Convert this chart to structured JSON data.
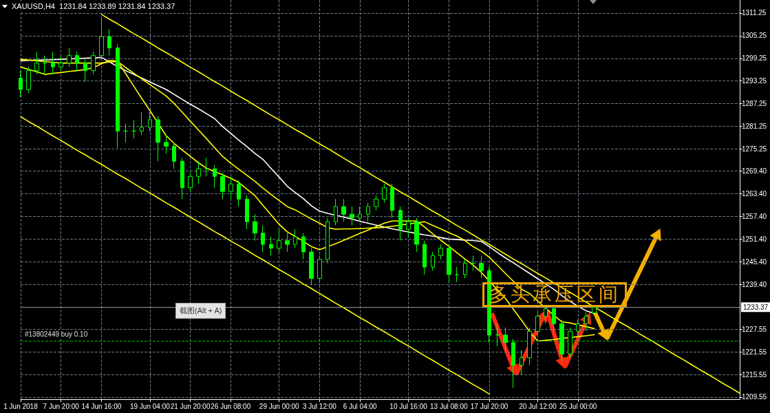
{
  "chart_data": {
    "type": "candlestick",
    "title": "XAUUSD,H4  1231.84 1233.89 1231.84 1233.37",
    "categories": [
      "1 Jun 2018",
      null,
      null,
      null,
      null,
      "7 Jun 20:00",
      null,
      null,
      null,
      null,
      "14 Jun 16:00",
      null,
      null,
      null,
      null,
      null,
      "19 Jun 04:00",
      null,
      null,
      null,
      null,
      "21 Jun 20:00",
      null,
      null,
      null,
      null,
      "26 Jun 08:00",
      null,
      null,
      null,
      null,
      null,
      "29 Jun 00:00",
      null,
      null,
      null,
      null,
      "3 Jul 12:00",
      null,
      null,
      null,
      null,
      "6 Jul 04:00",
      null,
      null,
      null,
      null,
      null,
      "10 Jul 16:00",
      null,
      null,
      null,
      null,
      "13 Jul 08:00",
      null,
      null,
      null,
      null,
      "17 Jul 20:00",
      null,
      null,
      null,
      null,
      null,
      "20 Jul 12:00",
      null,
      null,
      null,
      null,
      "25 Jul 00:00",
      null,
      null,
      null,
      null,
      null,
      null,
      null,
      null,
      null,
      null,
      null,
      null,
      null,
      null,
      null,
      null,
      null,
      null,
      null,
      null
    ],
    "ohlc": [
      [
        1294,
        1296,
        1289,
        1291
      ],
      [
        1291,
        1297,
        1290,
        1296
      ],
      [
        1296,
        1301,
        1295,
        1298
      ],
      [
        1298,
        1300,
        1295,
        1298
      ],
      [
        1298,
        1301,
        1295,
        1297
      ],
      [
        1297,
        1300,
        1296,
        1298
      ],
      [
        1298,
        1302,
        1297,
        1300
      ],
      [
        1300,
        1301,
        1296,
        1298
      ],
      [
        1298,
        1299,
        1293,
        1296
      ],
      [
        1296,
        1301,
        1295,
        1300
      ],
      [
        1300,
        1310,
        1299,
        1305
      ],
      [
        1305,
        1307,
        1300,
        1302
      ],
      [
        1302,
        1303,
        1275.5,
        1280
      ],
      [
        1280,
        1282,
        1277,
        1280
      ],
      [
        1280,
        1283,
        1278,
        1280
      ],
      [
        1280,
        1285,
        1279,
        1281
      ],
      [
        1281,
        1285,
        1280,
        1283
      ],
      [
        1283,
        1284,
        1272,
        1277
      ],
      [
        1277,
        1279,
        1274,
        1276
      ],
      [
        1276,
        1277,
        1270,
        1272
      ],
      [
        1272,
        1273,
        1262,
        1265
      ],
      [
        1265,
        1269,
        1264,
        1268
      ],
      [
        1268,
        1272,
        1266,
        1270
      ],
      [
        1270,
        1273,
        1268,
        1270
      ],
      [
        1270,
        1271,
        1265,
        1268
      ],
      [
        1268,
        1269,
        1262,
        1264
      ],
      [
        1264,
        1268,
        1262,
        1266
      ],
      [
        1266,
        1267,
        1260,
        1262
      ],
      [
        1262,
        1263,
        1254,
        1256
      ],
      [
        1256,
        1258,
        1251,
        1253
      ],
      [
        1253,
        1255,
        1248,
        1250
      ],
      [
        1250,
        1252,
        1247,
        1249
      ],
      [
        1249,
        1254,
        1248,
        1251
      ],
      [
        1251,
        1253,
        1248,
        1250
      ],
      [
        1250,
        1254,
        1249,
        1252
      ],
      [
        1252,
        1253,
        1246,
        1248
      ],
      [
        1248,
        1249,
        1239.3,
        1241
      ],
      [
        1241,
        1247,
        1240,
        1246
      ],
      [
        1246,
        1257,
        1245,
        1256
      ],
      [
        1256,
        1262,
        1255,
        1260
      ],
      [
        1260,
        1262,
        1256,
        1258
      ],
      [
        1258,
        1260,
        1255,
        1257
      ],
      [
        1257,
        1260,
        1256,
        1258
      ],
      [
        1258,
        1261,
        1256,
        1260
      ],
      [
        1260,
        1263,
        1259,
        1262
      ],
      [
        1262,
        1266,
        1261,
        1265
      ],
      [
        1265,
        1266,
        1257,
        1259
      ],
      [
        1259,
        1260,
        1251,
        1254
      ],
      [
        1254,
        1257,
        1252,
        1256
      ],
      [
        1256,
        1257,
        1248,
        1250
      ],
      [
        1250,
        1251,
        1242,
        1244
      ],
      [
        1244,
        1248,
        1243,
        1247
      ],
      [
        1247,
        1250,
        1246,
        1249
      ],
      [
        1249,
        1250,
        1240,
        1242
      ],
      [
        1242,
        1244,
        1240,
        1242
      ],
      [
        1242,
        1246,
        1241,
        1245
      ],
      [
        1245,
        1247,
        1243,
        1245
      ],
      [
        1245,
        1247,
        1241,
        1243
      ],
      [
        1243,
        1244,
        1224,
        1226
      ],
      [
        1226,
        1229,
        1223,
        1226
      ],
      [
        1226,
        1228,
        1222,
        1224
      ],
      [
        1224,
        1225,
        1212,
        1218
      ],
      [
        1218,
        1222,
        1215.5,
        1220
      ],
      [
        1220,
        1228,
        1218,
        1227
      ],
      [
        1227,
        1232,
        1226,
        1231
      ],
      [
        1231,
        1234,
        1229,
        1233
      ],
      [
        1233,
        1234,
        1227,
        1229
      ],
      [
        1229,
        1230,
        1219,
        1221
      ],
      [
        1221,
        1228,
        1220,
        1227
      ],
      [
        1227,
        1230,
        1225,
        1229
      ],
      [
        1229,
        1232,
        1227,
        1231
      ],
      [
        1231.84,
        1233.89,
        1231.84,
        1233.37
      ],
      null,
      null,
      null,
      null,
      null,
      null,
      null,
      null,
      null,
      null,
      null,
      null,
      null,
      null,
      null,
      null,
      null,
      null
    ],
    "color": "#00ff00",
    "series": [
      {
        "type": "line",
        "color": "#ffffff",
        "values": [
          1298.6,
          1298.7,
          1298.8,
          1298.8,
          1298.9,
          1299.0,
          1299.1,
          1299.2,
          1299.3,
          1299.4,
          1299.5,
          1298.3,
          1297.1,
          1296.0,
          1295.0,
          1294.0,
          1293.0,
          1292.0,
          1291.0,
          1289.7,
          1288.4,
          1287.1,
          1285.9,
          1284.6,
          1283.3,
          1281.2,
          1279.4,
          1277.6,
          1275.9,
          1274.1,
          1272.5,
          1270.1,
          1267.8,
          1265.4,
          1263.7,
          1262.1,
          1260.2,
          1258.8,
          1258.2,
          1257.7,
          1257.2,
          1256.7,
          1256.1,
          1255.6,
          1255.1,
          1254.6,
          1254.1,
          1253.7,
          1253.3,
          1252.9,
          1252.5,
          1252.2,
          1251.8,
          1251.4,
          1251.3,
          1251.1,
          1251.0,
          1250.8,
          1249.4,
          1247.9,
          1246.4,
          1245.1,
          1243.7,
          1242.3,
          1240.9,
          1239.5,
          1238.1,
          1236.4,
          1234.9,
          1233.6,
          1232.4,
          1231.7,
          null,
          null,
          null,
          null,
          null,
          null,
          null,
          null,
          null,
          null,
          null,
          null,
          null,
          null,
          null,
          null,
          null,
          null
        ]
      },
      {
        "type": "line",
        "color": "#ffff00",
        "values": [
          1297,
          1296.3,
          1295.7,
          1295,
          1295.3,
          1295.5,
          1295.8,
          1296,
          1296.3,
          1296.8,
          1297.8,
          1298.7,
          1298.5,
          1295.2,
          1291.9,
          1288.6,
          1285.4,
          1282.1,
          1278.8,
          1276.7,
          1275.0,
          1273.3,
          1271.6,
          1270.2,
          1269.3,
          1268.4,
          1267.5,
          1266.4,
          1264.6,
          1262.9,
          1260.3,
          1257.8,
          1255.3,
          1253.3,
          1252.1,
          1250.8,
          1249.4,
          1248.6,
          1249.4,
          1250.2,
          1251.1,
          1252.0,
          1252.9,
          1253.8,
          1254.7,
          1255.6,
          1256.2,
          1256.2,
          1256.2,
          1256.2,
          1254.6,
          1252.8,
          1251.1,
          1249.5,
          1247.8,
          1246.1,
          1244.5,
          1242.6,
          1240.3,
          1238.0,
          1235.7,
          1232.8,
          1229.9,
          1226.9,
          1224.4,
          1224.6,
          1224.8,
          1225.1,
          1225.3,
          1225.6,
          1225.8,
          1226.1,
          null,
          null,
          null,
          null,
          null,
          null,
          null,
          null,
          null,
          null,
          null,
          null,
          null,
          null,
          null,
          null,
          null,
          null
        ]
      },
      {
        "type": "line",
        "color": "#ffff00",
        "values": [
          1299,
          1298.8,
          1298.6,
          1298.4,
          1298.2,
          1298,
          1298,
          1298,
          1298,
          1298,
          1298,
          1298.3,
          1298.4,
          1296.8,
          1295.3,
          1293.8,
          1292.3,
          1290.8,
          1289.3,
          1287.3,
          1285,
          1282.6,
          1280.3,
          1278,
          1275.6,
          1273.3,
          1271.5,
          1269.9,
          1268.3,
          1266.7,
          1264.9,
          1263.2,
          1261.6,
          1260.0,
          1259.1,
          1257.9,
          1256.7,
          1255.6,
          1254.4,
          1254.0,
          1254.1,
          1254.1,
          1254.2,
          1254.3,
          1254.4,
          1254.5,
          1254.8,
          1255.1,
          1255.4,
          1255.7,
          1256,
          1255,
          1254.1,
          1253.1,
          1252.2,
          1251.0,
          1249.4,
          1248.2,
          1246.6,
          1244.5,
          1242.3,
          1240.2,
          1238.1,
          1237.0,
          1235.0,
          1233.1,
          1231.2,
          1229.5,
          1229.2,
          1228.7,
          1228.2,
          1227.7,
          null,
          null,
          null,
          null,
          null,
          null,
          null,
          null,
          null,
          null,
          null,
          null,
          null,
          null,
          null,
          null,
          null,
          null
        ]
      },
      {
        "type": "line",
        "color": "#ffff00",
        "values": [
          null,
          null,
          null,
          null,
          null,
          null,
          null,
          null,
          null,
          null,
          1310.9,
          1309.6,
          1308.4,
          1307.1,
          1305.8,
          1304.6,
          1303.3,
          1302.0,
          1300.8,
          1299.5,
          1298.2,
          1296.9,
          1295.7,
          1294.4,
          1293.1,
          1291.9,
          1290.6,
          1289.3,
          1288.1,
          1286.8,
          1285.5,
          1284.2,
          1283.0,
          1281.7,
          1280.4,
          1279.2,
          1277.9,
          1276.6,
          1275.4,
          1274.1,
          1272.8,
          1271.5,
          1270.3,
          1269.0,
          1267.7,
          1266.5,
          1265.2,
          1263.9,
          1262.7,
          1261.4,
          1260.1,
          1258.8,
          1257.6,
          1256.3,
          1255.0,
          1253.8,
          1252.5,
          1251.2,
          1250.0,
          1248.7,
          1247.4,
          1246.1,
          1244.9,
          1243.6,
          1242.3,
          1241.1,
          1239.8,
          1238.5,
          1237.3,
          1236.0,
          1234.7,
          1233.4,
          1232.2,
          1230.9,
          1229.6,
          1228.4,
          1227.1,
          1225.8,
          1224.6,
          1223.3,
          1222.0,
          1220.7,
          1219.5,
          1218.2,
          1216.9,
          1215.7,
          1214.4,
          1213.1,
          1211.9,
          1210.6
        ]
      },
      {
        "type": "line",
        "color": "#ffff00",
        "values": [
          1283.8,
          1282.5,
          1281.3,
          1280.0,
          1278.7,
          1277.5,
          1276.2,
          1274.9,
          1273.7,
          1272.4,
          1271.2,
          1269.9,
          1268.6,
          1267.4,
          1266.1,
          1264.8,
          1263.6,
          1262.3,
          1261.0,
          1259.8,
          1258.5,
          1257.2,
          1256.0,
          1254.7,
          1253.4,
          1252.2,
          1250.9,
          1249.7,
          1248.4,
          1247.1,
          1245.9,
          1244.6,
          1243.3,
          1242.1,
          1240.8,
          1239.5,
          1238.3,
          1237.0,
          1235.7,
          1234.4,
          1233.2,
          1231.9,
          1230.6,
          1229.4,
          1228.1,
          1226.9,
          1225.6,
          1224.3,
          1223.1,
          1221.8,
          1220.5,
          1219.3,
          1218.0,
          1216.7,
          1215.5,
          1214.2,
          1212.9,
          1211.7,
          1210.4,
          null,
          null,
          null,
          null,
          null,
          null,
          null,
          null,
          null,
          null,
          null,
          null,
          null,
          null,
          null,
          null,
          null,
          null,
          null,
          null,
          null,
          null,
          null,
          null,
          null,
          null,
          null,
          null,
          null,
          null,
          null
        ]
      }
    ],
    "marker": "none",
    "ylim": [
      1209.0,
      1314.7
    ],
    "yticks": [
      1209.55,
      1215.55,
      1221.55,
      1227.55,
      {
        "value": 1239.4,
        "label": "1239.40"
      },
      {
        "value": 1245.4,
        "label": "1245.40"
      },
      {
        "value": 1251.4,
        "label": "1251.40"
      },
      {
        "value": 1257.4,
        "label": "1257.40"
      },
      {
        "value": 1263.4,
        "label": "1263.40"
      },
      {
        "value": 1269.4,
        "label": "1269.40"
      },
      1275.25,
      1281.25,
      1287.25,
      1293.25,
      1299.25,
      1305.25,
      1311.25
    ],
    "grid": true,
    "ref_lines": [
      {
        "axis": "y",
        "value": 1233.37,
        "label": "1233.37",
        "color": "#8c96a0"
      },
      {
        "axis": "y",
        "value": 1224.4,
        "label": "#13802449 buy 0.10",
        "color": "#00c000",
        "line_style": "dashed"
      }
    ],
    "annotations": [
      {
        "text": "多头承压区间",
        "y": 1233.37
      },
      "截图(Alt + A)"
    ]
  }
}
